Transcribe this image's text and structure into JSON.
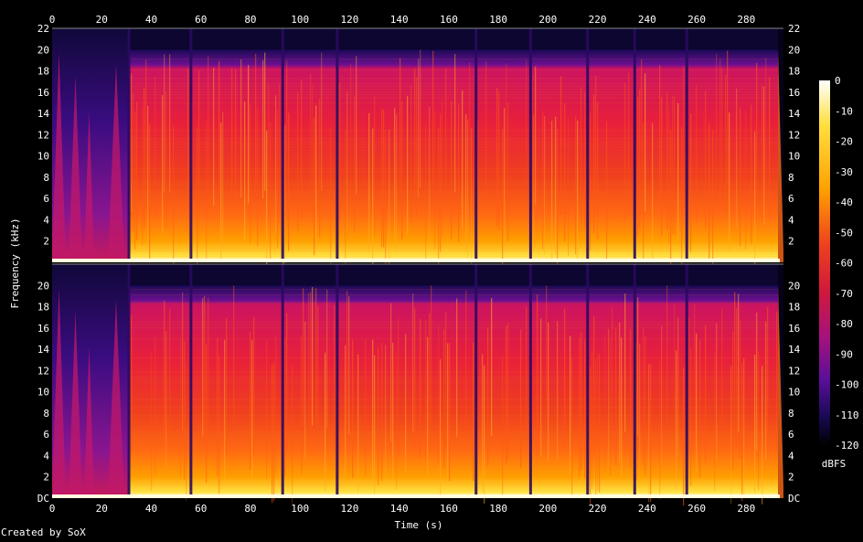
{
  "credit": "Created by SoX",
  "chart_data": {
    "type": "heatmap",
    "title": "",
    "xlabel": "Time (s)",
    "ylabel": "Frequency (kHz)",
    "colorbar_label": "dBFS",
    "xlim": [
      0,
      295
    ],
    "ylim": [
      0,
      22
    ],
    "x_ticks": [
      0,
      20,
      40,
      60,
      80,
      100,
      120,
      140,
      160,
      180,
      200,
      220,
      240,
      260,
      280
    ],
    "y_ticks_top": [
      "22",
      "20",
      "18",
      "16",
      "14",
      "12",
      "10",
      "8",
      "6",
      "4",
      "2"
    ],
    "y_ticks_bottom": [
      "20",
      "18",
      "16",
      "14",
      "12",
      "10",
      "8",
      "6",
      "4",
      "2",
      "DC"
    ],
    "colorbar_range": [
      -120,
      0
    ],
    "colorbar_ticks": [
      "0",
      "-10",
      "-20",
      "-30",
      "-40",
      "-50",
      "-60",
      "-70",
      "-80",
      "-90",
      "-100",
      "-110",
      "-120"
    ],
    "channels": 2,
    "lowpass_cutoff_khz": 20,
    "quiet_intro_end_s": 31,
    "fade_out_end_s": 295,
    "section_boundaries_s": [
      31,
      56,
      93,
      115,
      171,
      193,
      216,
      235,
      256
    ],
    "colormap": [
      "#000000",
      "#1a0a55",
      "#5a0f9a",
      "#b0157a",
      "#e8203a",
      "#ff5a14",
      "#ffa000",
      "#ffe040",
      "#ffffd0",
      "#ffffff"
    ]
  }
}
